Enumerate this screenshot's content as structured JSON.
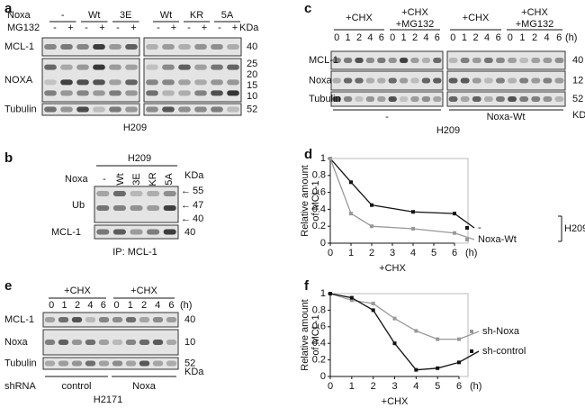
{
  "a": {
    "letter": "a",
    "noxa_label": "Noxa",
    "mg132_label": "MG132",
    "groups": [
      "-",
      "Wt",
      "3E",
      "Wt",
      "KR",
      "5A"
    ],
    "treatments": [
      "-",
      "+",
      "-",
      "+",
      "-",
      "+",
      "-",
      "+",
      "-",
      "+",
      "-",
      "+"
    ],
    "unit": "KDa",
    "blots": [
      {
        "label": "MCL-1",
        "markers": [
          40
        ]
      },
      {
        "label": "NOXA",
        "markers": [
          25,
          20,
          15,
          10
        ]
      },
      {
        "label": "Tubulin",
        "markers": [
          52
        ]
      }
    ],
    "cell_line": "H209"
  },
  "b": {
    "letter": "b",
    "cell_line": "H209",
    "noxa_label": "Noxa",
    "lanes": [
      "-",
      "Wt",
      "3E",
      "KR",
      "5A"
    ],
    "unit": "KDa",
    "blots": [
      {
        "label": "Ub",
        "markers": [
          55,
          47,
          40
        ]
      },
      {
        "label": "MCL-1",
        "markers": [
          40
        ]
      }
    ],
    "ip": "IP: MCL-1"
  },
  "c": {
    "letter": "c",
    "conditions": [
      [
        "+CHX"
      ],
      [
        "+CHX",
        "+MG132"
      ],
      [
        "+CHX"
      ],
      [
        "+CHX",
        "+MG132"
      ]
    ],
    "lanes": [
      0,
      1,
      2,
      4,
      6,
      0,
      1,
      2,
      4,
      6,
      0,
      1,
      2,
      4,
      6,
      0,
      1,
      2,
      4,
      6
    ],
    "hours_unit": "(h)",
    "blots": [
      {
        "label": "MCL-1",
        "markers": [
          40
        ]
      },
      {
        "label": "Noxa",
        "markers": [
          12
        ]
      },
      {
        "label": "Tubulin",
        "markers": [
          52
        ]
      }
    ],
    "unit": "KDa",
    "groups": [
      "-",
      "Noxa-Wt"
    ],
    "cell_line": "H209"
  },
  "d": {
    "letter": "d",
    "chart": {
      "type": "line",
      "ylabel": [
        "Relative amount",
        "of MCL-1"
      ],
      "xlabel": "+CHX",
      "x_unit": "(h)",
      "x": [
        0,
        1,
        2,
        4,
        6
      ],
      "xlim": [
        0,
        6
      ],
      "xticks": [
        0,
        1,
        2,
        3,
        4,
        5,
        6
      ],
      "ylim": [
        0,
        1
      ],
      "yticks": [
        0,
        0.2,
        0.4,
        0.6,
        0.8,
        1
      ],
      "series": [
        {
          "name": "-",
          "color": "#111111",
          "values": [
            1,
            0.72,
            0.45,
            0.37,
            0.35
          ]
        },
        {
          "name": "Noxa-Wt",
          "color": "#999999",
          "values": [
            1,
            0.35,
            0.2,
            0.17,
            0.12
          ]
        }
      ],
      "group_label": "H209"
    }
  },
  "e": {
    "letter": "e",
    "conditions": [
      "+CHX",
      "+CHX"
    ],
    "hours_unit": "(h)",
    "lanes": [
      0,
      1,
      2,
      4,
      6,
      0,
      1,
      2,
      4,
      6
    ],
    "blots": [
      {
        "label": "MCL-1",
        "markers": [
          40
        ]
      },
      {
        "label": "Noxa",
        "markers": [
          10
        ]
      },
      {
        "label": "Tubulin",
        "markers": [
          52
        ]
      }
    ],
    "unit": "KDa",
    "shrna_label": "shRNA",
    "groups": [
      "control",
      "Noxa"
    ],
    "cell_line": "H2171"
  },
  "f": {
    "letter": "f",
    "chart": {
      "type": "line",
      "ylabel": [
        "Relative amount",
        "of MCL-1"
      ],
      "xlabel": "+CHX",
      "x_unit": "(h)",
      "x": [
        0,
        1,
        2,
        3,
        4,
        5,
        6
      ],
      "xlim": [
        0,
        6
      ],
      "xticks": [
        0,
        1,
        2,
        3,
        4,
        5,
        6
      ],
      "ylim": [
        0,
        1
      ],
      "yticks": [
        0,
        0.2,
        0.4,
        0.6,
        0.8,
        1
      ],
      "series": [
        {
          "name": "sh-Noxa",
          "color": "#999999",
          "values": [
            1,
            0.92,
            0.88,
            0.7,
            0.55,
            0.45,
            0.45
          ]
        },
        {
          "name": "sh-control",
          "color": "#111111",
          "values": [
            1,
            0.95,
            0.8,
            0.4,
            0.08,
            0.1,
            0.17
          ]
        }
      ]
    }
  }
}
